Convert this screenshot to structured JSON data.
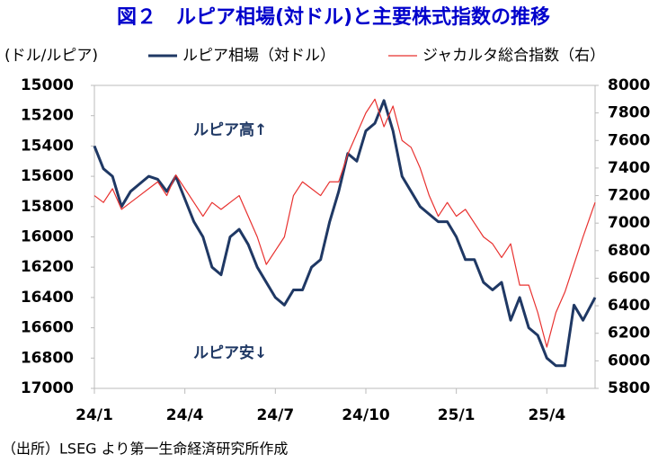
{
  "chart_data": {
    "type": "line",
    "title": "図２　ルピア相場(対ドル)と主要株式指数の推移",
    "y_label": "(ドル/ルピア)",
    "source": "（出所）LSEG より第一生命経済研究所作成",
    "annotations": [
      "ルピア高↑",
      "ルピア安↓"
    ],
    "x": [
      0,
      0.3,
      0.6,
      0.9,
      1.2,
      1.5,
      1.8,
      2.1,
      2.4,
      2.7,
      3.0,
      3.3,
      3.6,
      3.9,
      4.2,
      4.5,
      4.8,
      5.1,
      5.4,
      5.7,
      6.0,
      6.3,
      6.6,
      6.9,
      7.2,
      7.5,
      7.8,
      8.1,
      8.4,
      8.7,
      9.0,
      9.3,
      9.6,
      9.9,
      10.2,
      10.5,
      10.8,
      11.1,
      11.4,
      11.7,
      12.0,
      12.3,
      12.6,
      12.9,
      13.2,
      13.5,
      13.8,
      14.1,
      14.4,
      14.7,
      15.0,
      15.3,
      15.6,
      15.9,
      16.2,
      16.6
    ],
    "xlim": [
      0,
      16.6
    ],
    "xticks": [
      {
        "value": 0,
        "label": "24/1"
      },
      {
        "value": 3,
        "label": "24/4"
      },
      {
        "value": 6,
        "label": "24/7"
      },
      {
        "value": 9,
        "label": "24/10"
      },
      {
        "value": 12,
        "label": "25/1"
      },
      {
        "value": 15,
        "label": "25/4"
      }
    ],
    "ylim": [
      17000,
      15000
    ],
    "yticks": [
      15000,
      15200,
      15400,
      15600,
      15800,
      16000,
      16200,
      16400,
      16600,
      16800,
      17000
    ],
    "y2lim": [
      5800,
      8000
    ],
    "y2ticks": [
      5800,
      6000,
      6200,
      6400,
      6600,
      6800,
      7000,
      7200,
      7400,
      7600,
      7800,
      8000
    ],
    "series": [
      {
        "name": "ルピア相場（対ドル）",
        "color": "#1f3864",
        "values": [
          15400,
          15550,
          15600,
          15800,
          15700,
          15650,
          15600,
          15620,
          15700,
          15600,
          15750,
          15900,
          16000,
          16200,
          16250,
          16000,
          15950,
          16050,
          16200,
          16300,
          16400,
          16450,
          16350,
          16350,
          16200,
          16150,
          15900,
          15700,
          15450,
          15500,
          15300,
          15250,
          15100,
          15300,
          15600,
          15700,
          15800,
          15850,
          15900,
          15900,
          16000,
          16150,
          16150,
          16300,
          16350,
          16300,
          16550,
          16400,
          16600,
          16650,
          16800,
          16850,
          16850,
          16450,
          16550,
          16400
        ]
      },
      {
        "name": "ジャカルタ総合指数（右）",
        "color": "#e8312f",
        "axis": "y2",
        "values": [
          7200,
          7150,
          7250,
          7100,
          7150,
          7200,
          7250,
          7300,
          7200,
          7350,
          7250,
          7150,
          7050,
          7150,
          7100,
          7150,
          7200,
          7050,
          6900,
          6700,
          6800,
          6900,
          7200,
          7300,
          7250,
          7200,
          7300,
          7300,
          7500,
          7650,
          7800,
          7900,
          7700,
          7850,
          7600,
          7550,
          7400,
          7200,
          7050,
          7150,
          7050,
          7100,
          7000,
          6900,
          6850,
          6750,
          6850,
          6550,
          6550,
          6350,
          6100,
          6350,
          6500,
          6700,
          6900,
          7150
        ]
      }
    ]
  }
}
